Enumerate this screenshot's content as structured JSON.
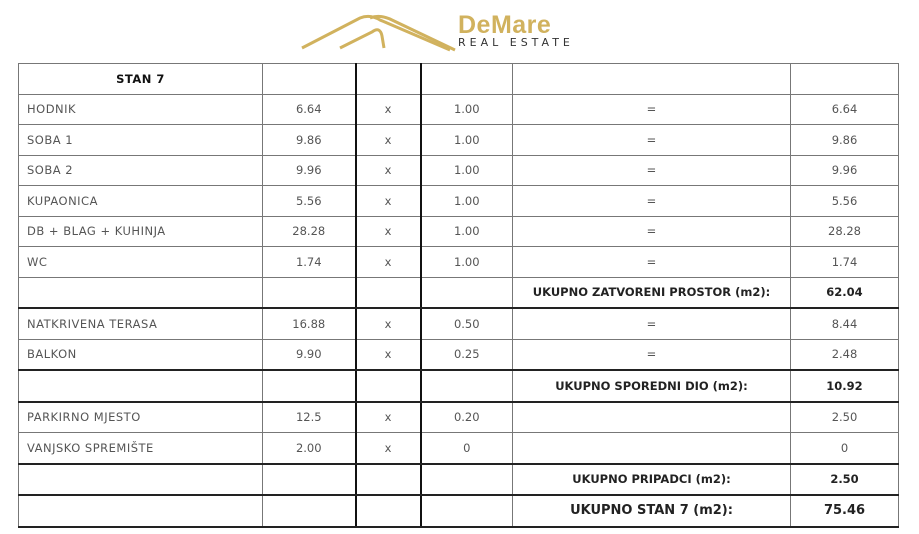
{
  "logo": {
    "name": "DeMare",
    "sub": "REAL ESTATE",
    "color": "#d1b25e"
  },
  "table": {
    "title": "STAN 7",
    "rows": [
      {
        "name": "HODNIK",
        "area": "6.64",
        "op": "x",
        "coef": "1.00",
        "eq": "=",
        "result": "6.64"
      },
      {
        "name": "SOBA 1",
        "area": "9.86",
        "op": "x",
        "coef": "1.00",
        "eq": "=",
        "result": "9.86"
      },
      {
        "name": "SOBA 2",
        "area": "9.96",
        "op": "x",
        "coef": "1.00",
        "eq": "=",
        "result": "9.96"
      },
      {
        "name": "KUPAONICA",
        "area": "5.56",
        "op": "x",
        "coef": "1.00",
        "eq": "=",
        "result": "5.56"
      },
      {
        "name": "DB + BLAG + KUHINJA",
        "area": "28.28",
        "op": "x",
        "coef": "1.00",
        "eq": "=",
        "result": "28.28"
      },
      {
        "name": "WC",
        "area": "1.74",
        "op": "x",
        "coef": "1.00",
        "eq": "=",
        "result": "1.74"
      },
      {
        "total": true,
        "eq": "UKUPNO ZATVORENI PROSTOR (m2):",
        "result": "62.04"
      },
      {
        "name": "NATKRIVENA TERASA",
        "area": "16.88",
        "op": "x",
        "coef": "0.50",
        "eq": "=",
        "result": "8.44"
      },
      {
        "name": "BALKON",
        "area": "9.90",
        "op": "x",
        "coef": "0.25",
        "eq": "=",
        "result": "2.48",
        "thick": true
      },
      {
        "total": true,
        "eq": "UKUPNO SPOREDNI DIO (m2):",
        "result": "10.92"
      },
      {
        "name": "PARKIRNO MJESTO",
        "area": "12.5",
        "op": "x",
        "coef": "0.20",
        "eq": "",
        "result": "2.50"
      },
      {
        "name": "VANJSKO SPREMIŠTE",
        "area": "2.00",
        "op": "x",
        "coef": "0",
        "eq": "",
        "result": "0",
        "thick": true
      },
      {
        "total": true,
        "eq": "UKUPNO PRIPADCI (m2):",
        "result": "2.50"
      },
      {
        "total": true,
        "eq": "UKUPNO STAN 7 (m2):",
        "result": "75.46",
        "big": true
      }
    ]
  }
}
